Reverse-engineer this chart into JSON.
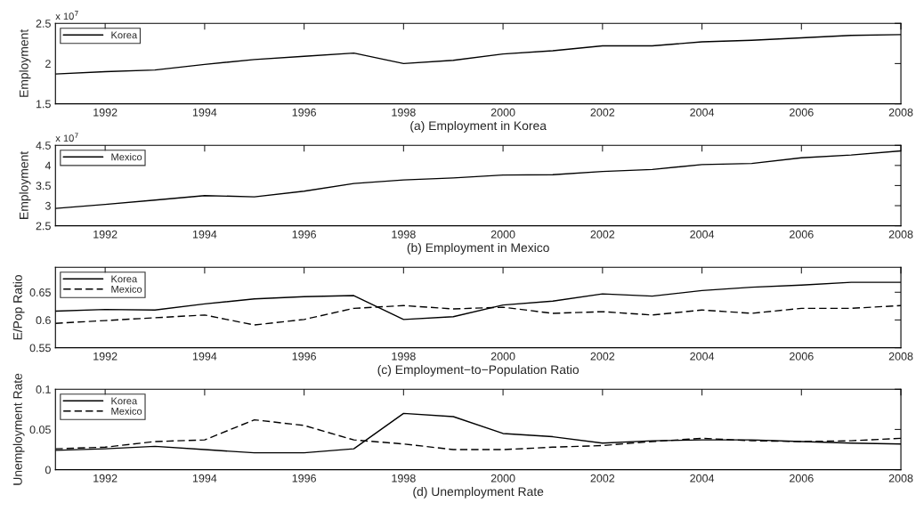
{
  "chart_data": [
    {
      "type": "line",
      "xlabel": "(a) Employment in Korea",
      "ylabel": "Employment",
      "annotations": [
        "x 10$^{7}$"
      ],
      "legend": "top left",
      "grid": false,
      "x": [
        1991,
        1992,
        1993,
        1994,
        1995,
        1996,
        1997,
        1998,
        1999,
        2000,
        2001,
        2002,
        2003,
        2004,
        2005,
        2006,
        2007,
        2008
      ],
      "xlim": [
        1991,
        2008
      ],
      "xticks": [
        1992,
        1994,
        1996,
        1998,
        2000,
        2002,
        2004,
        2006,
        2008
      ],
      "ylim": [
        1.5,
        2.5
      ],
      "yticks": [
        1.5,
        2,
        2.5
      ],
      "series": [
        {
          "name": "Korea",
          "color": "#000000",
          "line_style": "solid",
          "values": [
            1.87,
            1.9,
            1.92,
            1.99,
            2.05,
            2.09,
            2.13,
            2.0,
            2.04,
            2.12,
            2.16,
            2.22,
            2.22,
            2.27,
            2.29,
            2.32,
            2.35,
            2.36
          ]
        }
      ]
    },
    {
      "type": "line",
      "xlabel": "(b) Employment in Mexico",
      "ylabel": "Employment",
      "annotations": [
        "x 10$^{7}$"
      ],
      "legend": "top left",
      "grid": false,
      "x": [
        1991,
        1992,
        1993,
        1994,
        1995,
        1996,
        1997,
        1998,
        1999,
        2000,
        2001,
        2002,
        2003,
        2004,
        2005,
        2006,
        2007,
        2008
      ],
      "xlim": [
        1991,
        2008
      ],
      "xticks": [
        1992,
        1994,
        1996,
        1998,
        2000,
        2002,
        2004,
        2006,
        2008
      ],
      "ylim": [
        2.5,
        4.5
      ],
      "yticks": [
        2.5,
        3,
        3.5,
        4,
        4.5
      ],
      "series": [
        {
          "name": "Mexico",
          "color": "#000000",
          "line_style": "solid",
          "values": [
            2.93,
            3.03,
            3.14,
            3.25,
            3.22,
            3.36,
            3.55,
            3.64,
            3.69,
            3.76,
            3.77,
            3.85,
            3.9,
            4.02,
            4.05,
            4.19,
            4.26,
            4.36
          ]
        }
      ]
    },
    {
      "type": "line",
      "xlabel": "(c) Employment−to−Population Ratio",
      "ylabel": "E/Pop Ratio",
      "legend": "top left",
      "grid": false,
      "x": [
        1991,
        1992,
        1993,
        1994,
        1995,
        1996,
        1997,
        1998,
        1999,
        2000,
        2001,
        2002,
        2003,
        2004,
        2005,
        2006,
        2007,
        2008
      ],
      "xlim": [
        1991,
        2008
      ],
      "xticks": [
        1992,
        1994,
        1996,
        1998,
        2000,
        2002,
        2004,
        2006,
        2008
      ],
      "ylim": [
        0.55,
        0.695
      ],
      "yticks": [
        0.55,
        0.6,
        0.65
      ],
      "series": [
        {
          "name": "Korea",
          "color": "#000000",
          "line_style": "solid",
          "values": [
            0.616,
            0.619,
            0.618,
            0.629,
            0.638,
            0.642,
            0.644,
            0.601,
            0.606,
            0.627,
            0.634,
            0.647,
            0.643,
            0.653,
            0.659,
            0.663,
            0.668,
            0.668
          ]
        },
        {
          "name": "Mexico",
          "color": "#000000",
          "line_style": "dashed",
          "values": [
            0.594,
            0.599,
            0.604,
            0.609,
            0.591,
            0.601,
            0.621,
            0.626,
            0.62,
            0.623,
            0.612,
            0.615,
            0.609,
            0.618,
            0.612,
            0.621,
            0.621,
            0.626
          ]
        }
      ]
    },
    {
      "type": "line",
      "xlabel": "(d) Unemployment Rate",
      "ylabel": "Unemployment Rate",
      "legend": "top left",
      "grid": false,
      "x": [
        1991,
        1992,
        1993,
        1994,
        1995,
        1996,
        1997,
        1998,
        1999,
        2000,
        2001,
        2002,
        2003,
        2004,
        2005,
        2006,
        2007,
        2008
      ],
      "xlim": [
        1991,
        2008
      ],
      "xticks": [
        1992,
        1994,
        1996,
        1998,
        2000,
        2002,
        2004,
        2006,
        2008
      ],
      "ylim": [
        0,
        0.1
      ],
      "yticks": [
        0,
        0.05,
        0.1
      ],
      "series": [
        {
          "name": "Korea",
          "color": "#000000",
          "line_style": "solid",
          "values": [
            0.024,
            0.026,
            0.029,
            0.025,
            0.021,
            0.021,
            0.026,
            0.07,
            0.066,
            0.045,
            0.041,
            0.033,
            0.036,
            0.037,
            0.037,
            0.035,
            0.033,
            0.032
          ]
        },
        {
          "name": "Mexico",
          "color": "#000000",
          "line_style": "dashed",
          "values": [
            0.026,
            0.028,
            0.035,
            0.037,
            0.062,
            0.055,
            0.037,
            0.032,
            0.025,
            0.025,
            0.028,
            0.03,
            0.035,
            0.039,
            0.036,
            0.035,
            0.036,
            0.039
          ]
        }
      ]
    }
  ]
}
